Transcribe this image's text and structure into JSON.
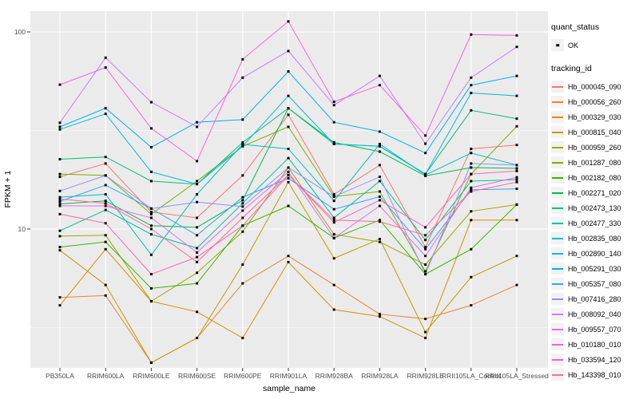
{
  "figure": {
    "y_axis_title": "FPKM + 1",
    "x_axis_title": "sample_name",
    "panel_bg": "#EBEBEB",
    "grid_color": "#FFFFFF",
    "tick_label_color": "#4d4d4d",
    "point_color": "#000000"
  },
  "legend": {
    "quant_status_title": "quant_status",
    "quant_status_items": [
      {
        "label": "OK",
        "marker": "black-point"
      }
    ],
    "tracking_id_title": "tracking_id"
  },
  "chart_data": {
    "type": "line",
    "title": "",
    "xlabel": "sample_name",
    "ylabel": "FPKM + 1",
    "y_scale": "log10",
    "ylim": [
      2,
      127
    ],
    "y_major_ticks": [
      10,
      100
    ],
    "y_minor_ticks": [
      3.162,
      31.62
    ],
    "grid": true,
    "legend_position": "right",
    "point_marker": "small black square (quant_status = OK)",
    "categories": [
      "PB350LA",
      "RRIM600LA",
      "RRIM600LE",
      "RRIM600SE",
      "RRIM600PE",
      "RRIM901LA",
      "RRIM928BA",
      "RRIM928LA",
      "RRIM928LE",
      "RRII105LA_Control",
      "RRII105LA_Stressed"
    ],
    "series": [
      {
        "name": "Hb_000045_090",
        "color": "#F8766D",
        "values": [
          18.4,
          21.5,
          12.2,
          11.4,
          18.7,
          38,
          15,
          21.1,
          8.1,
          25.5,
          26.7
        ]
      },
      {
        "name": "Hb_000056_260",
        "color": "#EA8331",
        "values": [
          4.5,
          4.6,
          2.1,
          2.8,
          5.3,
          7.3,
          5.2,
          3.7,
          3.5,
          4.1,
          5.2
        ]
      },
      {
        "name": "Hb_000329_030",
        "color": "#D89000",
        "values": [
          4.1,
          7.9,
          4.3,
          3.8,
          2.8,
          6.8,
          3.9,
          3.6,
          2.8,
          11.1,
          11.1
        ]
      },
      {
        "name": "Hb_000815_040",
        "color": "#C09B00",
        "values": [
          7.8,
          5.2,
          2.1,
          2.8,
          6.6,
          17.3,
          7.1,
          8.9,
          3.0,
          5.7,
          7.3
        ]
      },
      {
        "name": "Hb_000959_260",
        "color": "#A3A500",
        "values": [
          9.2,
          9.3,
          4.3,
          6.0,
          9.7,
          20.5,
          9.4,
          8.6,
          6.6,
          12.3,
          13.3
        ]
      },
      {
        "name": "Hb_001287_080",
        "color": "#7CAE00",
        "values": [
          19,
          18.7,
          11.9,
          17.5,
          26.3,
          33,
          14.6,
          15.5,
          6.1,
          19,
          33.2
        ]
      },
      {
        "name": "Hb_002182_080",
        "color": "#39B600",
        "values": [
          8.1,
          8.6,
          5.0,
          5.3,
          10.4,
          13.1,
          9.0,
          11.1,
          5.9,
          7.9,
          13.3
        ]
      },
      {
        "name": "Hb_002271_020",
        "color": "#00BB4E",
        "values": [
          13.4,
          13.9,
          10.4,
          10.2,
          14,
          41,
          27.5,
          24.7,
          18.6,
          20.5,
          20.3
        ]
      },
      {
        "name": "Hb_002473_130",
        "color": "#00C079",
        "values": [
          22.6,
          23.2,
          17.5,
          16.9,
          27.5,
          41,
          27,
          26.3,
          19,
          40,
          36.3
        ]
      },
      {
        "name": "Hb_002477_330",
        "color": "#00C19F",
        "values": [
          9.8,
          12.5,
          9.4,
          8.0,
          13.5,
          22.9,
          11.4,
          17.5,
          8.8,
          17.5,
          17.8
        ]
      },
      {
        "name": "Hb_002835_080",
        "color": "#00BFC4",
        "values": [
          14.5,
          15,
          7.4,
          15,
          26.9,
          25.5,
          13.9,
          27,
          18.8,
          24.3,
          21.1
        ]
      },
      {
        "name": "Hb_002890_140",
        "color": "#00BAE0",
        "values": [
          32,
          38.4,
          19.5,
          16.9,
          26.3,
          47.4,
          27,
          26.3,
          19,
          49,
          47.4
        ]
      },
      {
        "name": "Hb_005291_030",
        "color": "#00B0F6",
        "values": [
          33,
          41,
          26,
          34.8,
          35.9,
          63,
          34.8,
          31.2,
          24.3,
          53.7,
          59.8
        ]
      },
      {
        "name": "Hb_005357_080",
        "color": "#35A2FF",
        "values": [
          13.8,
          16.7,
          12.7,
          9.3,
          14.5,
          18.1,
          12.6,
          14.6,
          7.9,
          15.8,
          16
        ]
      },
      {
        "name": "Hb_007416_280",
        "color": "#9590FF",
        "values": [
          15.6,
          18.7,
          12.7,
          13.7,
          13,
          20.5,
          14.6,
          18.4,
          5.9,
          21.5,
          21.1
        ]
      },
      {
        "name": "Hb_008092_040",
        "color": "#C77CFF",
        "values": [
          34.6,
          74,
          44,
          33,
          58.6,
          80,
          42.5,
          59.8,
          27.1,
          58.6,
          84
        ]
      },
      {
        "name": "Hb_009557_070",
        "color": "#E76BF3",
        "values": [
          13.1,
          13.1,
          11.4,
          7.6,
          12.4,
          19.5,
          9.0,
          13.1,
          7.3,
          16.2,
          18.3
        ]
      },
      {
        "name": "Hb_010180_010",
        "color": "#FA62DB",
        "values": [
          54,
          66,
          32.4,
          22.1,
          72.6,
          113,
          44.2,
          53.7,
          29.8,
          97,
          96
        ]
      },
      {
        "name": "Hb_033594_120",
        "color": "#FF62BC",
        "values": [
          11.9,
          10.7,
          5.9,
          7.2,
          10.4,
          18.8,
          10.8,
          14,
          10.2,
          19,
          19.7
        ]
      },
      {
        "name": "Hb_143398_010",
        "color": "#FF6A98",
        "values": [
          14.2,
          13.5,
          10,
          6.8,
          11.4,
          18.8,
          11.1,
          10.9,
          9.3,
          15.5,
          17.3
        ]
      }
    ]
  }
}
